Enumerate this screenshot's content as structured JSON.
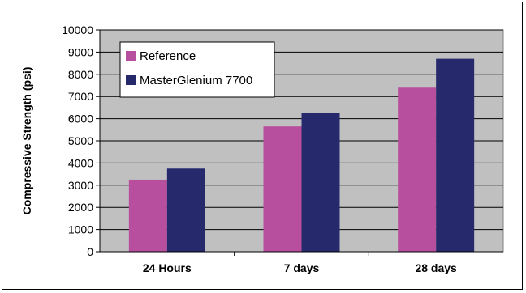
{
  "chart_data": {
    "type": "bar",
    "categories": [
      "24 Hours",
      "7 days",
      "28 days"
    ],
    "series": [
      {
        "name": "Reference",
        "values": [
          3250,
          5650,
          7400
        ],
        "color": "#b84f9e"
      },
      {
        "name": "MasterGlenium 7700",
        "values": [
          3750,
          6250,
          8700
        ],
        "color": "#262a6d"
      }
    ],
    "yticks": [
      0,
      1000,
      2000,
      3000,
      4000,
      5000,
      6000,
      7000,
      8000,
      9000,
      10000
    ],
    "ylim": [
      0,
      10000
    ],
    "ylabel": "Compressive Strength (psi)",
    "xlabel": "",
    "title": "",
    "grid": true,
    "legend_position": "top-left",
    "plot_background": "#c0c0c0"
  }
}
